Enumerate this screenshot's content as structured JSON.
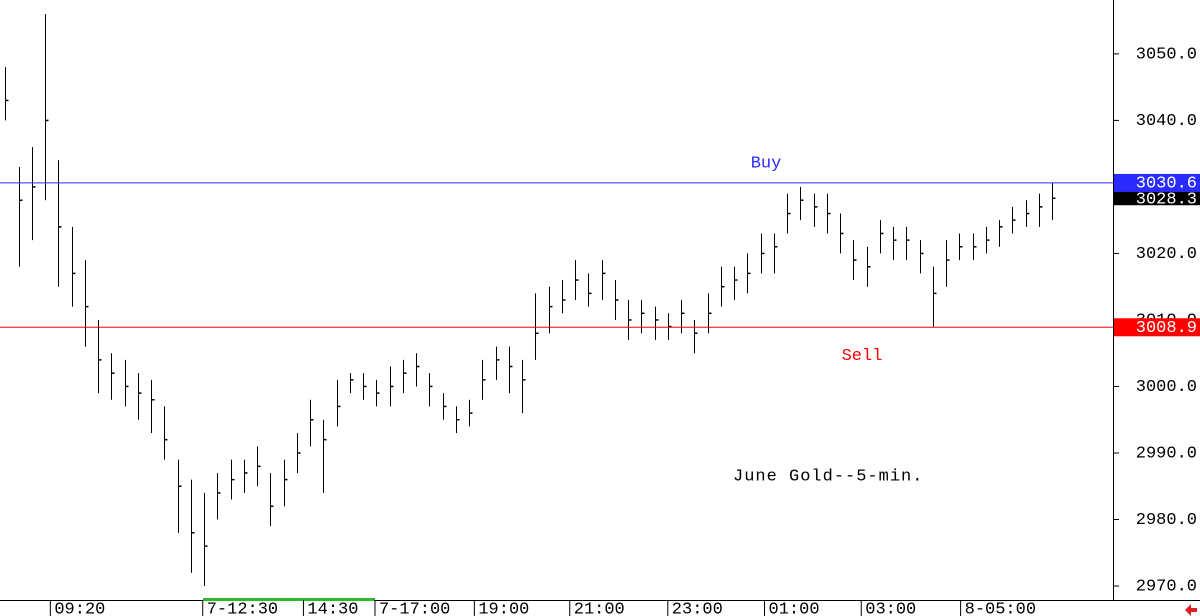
{
  "chart_data": {
    "type": "ohlc",
    "title": "June Gold--5-min.",
    "xlim": [
      0,
      84
    ],
    "xticks": [
      {
        "value": 3.8,
        "label": "09:20"
      },
      {
        "value": 15.3,
        "label": "7-12:30"
      },
      {
        "value": 22.9,
        "label": "14:30"
      },
      {
        "value": 28.3,
        "label": "7-17:00"
      },
      {
        "value": 35.8,
        "label": "19:00"
      },
      {
        "value": 43,
        "label": "21:00"
      },
      {
        "value": 50.4,
        "label": "23:00"
      },
      {
        "value": 57.7,
        "label": "01:00"
      },
      {
        "value": 65,
        "label": "03:00"
      },
      {
        "value": 72.5,
        "label": "8-05:00"
      }
    ],
    "ylim": [
      2967.9,
      3058.1
    ],
    "yticks": [
      {
        "value": 2970,
        "label": "2970.0"
      },
      {
        "value": 2980,
        "label": "2980.0"
      },
      {
        "value": 2990,
        "label": "2990.0"
      },
      {
        "value": 3000,
        "label": "3000.0"
      },
      {
        "value": 3010,
        "label": "3010.0"
      },
      {
        "value": 3020,
        "label": "3020.0"
      },
      {
        "value": 3030,
        "label": "3030.0"
      },
      {
        "value": 3040,
        "label": "3040.0"
      },
      {
        "value": 3050,
        "label": "3050.0"
      }
    ],
    "color": "#000000",
    "high": [
      3048,
      3033,
      3036,
      3056,
      3034,
      3024,
      3019,
      3010,
      3005,
      3004,
      3002,
      3001,
      2997,
      2989,
      2986,
      2984,
      2987,
      2989,
      2989,
      2991,
      2987,
      2989,
      2993,
      2998,
      2995,
      3001,
      3002,
      3002,
      3001,
      3003,
      3004,
      3005,
      3002,
      2999,
      2997,
      2998,
      3004,
      3006,
      3006,
      3004,
      3014,
      3015,
      3016,
      3019,
      3017,
      3019,
      3016,
      3013,
      3013,
      3012,
      3011,
      3013,
      3010,
      3014,
      3018,
      3018,
      3020,
      3023,
      3023,
      3029,
      3030,
      3029,
      3029,
      3026,
      3022,
      3021,
      3025,
      3024,
      3024,
      3022,
      3018,
      3022,
      3023,
      3023,
      3024,
      3025,
      3027,
      3028,
      3029,
      3030.6
    ],
    "low": [
      3040,
      3018,
      3022,
      3028,
      3015,
      3012,
      3006,
      2999,
      2998,
      2997,
      2995,
      2993,
      2989,
      2978,
      2972,
      2970,
      2980,
      2983,
      2984,
      2985,
      2979,
      2982,
      2987,
      2991,
      2984,
      2994,
      2999,
      2998,
      2997,
      2997,
      2999,
      3000,
      2997,
      2995,
      2993,
      2994,
      2998,
      3001,
      2999,
      2996,
      3004,
      3008,
      3011,
      3013,
      3012,
      3013,
      3010,
      3007,
      3008,
      3007,
      3007,
      3008,
      3005,
      3008,
      3012,
      3013,
      3014,
      3017,
      3017,
      3023,
      3025,
      3024,
      3023,
      3020,
      3016,
      3015,
      3020,
      3019,
      3019,
      3017,
      3009,
      3015,
      3019,
      3019,
      3020,
      3021,
      3023,
      3024,
      3024,
      3025
    ],
    "close": [
      3043,
      3028,
      3030,
      3040,
      3024,
      3017,
      3012,
      3004,
      3002,
      3000,
      2999,
      2998,
      2992,
      2985,
      2978,
      2976,
      2984,
      2986,
      2987,
      2988,
      2982,
      2986,
      2990,
      2995,
      2992,
      2997,
      3001,
      3000,
      2999,
      3000,
      3002,
      3003,
      3000,
      2997,
      2995,
      2996,
      3001,
      3004,
      3003,
      3001,
      3008,
      3012,
      3013,
      3016,
      3014,
      3017,
      3013,
      3010,
      3011,
      3010,
      3009,
      3011,
      3008,
      3011,
      3015,
      3016,
      3017,
      3020,
      3021,
      3026,
      3028,
      3027,
      3026,
      3023,
      3019,
      3018,
      3023,
      3022,
      3022,
      3020,
      3014,
      3019,
      3021,
      3021,
      3022,
      3024,
      3025,
      3026,
      3027,
      3028.3
    ],
    "levels": [
      {
        "name": "Buy",
        "value": 3030.6,
        "color": "#2b2bff"
      },
      {
        "name": "Sell",
        "value": 3008.9,
        "color": "#ff0000"
      }
    ]
  }
}
